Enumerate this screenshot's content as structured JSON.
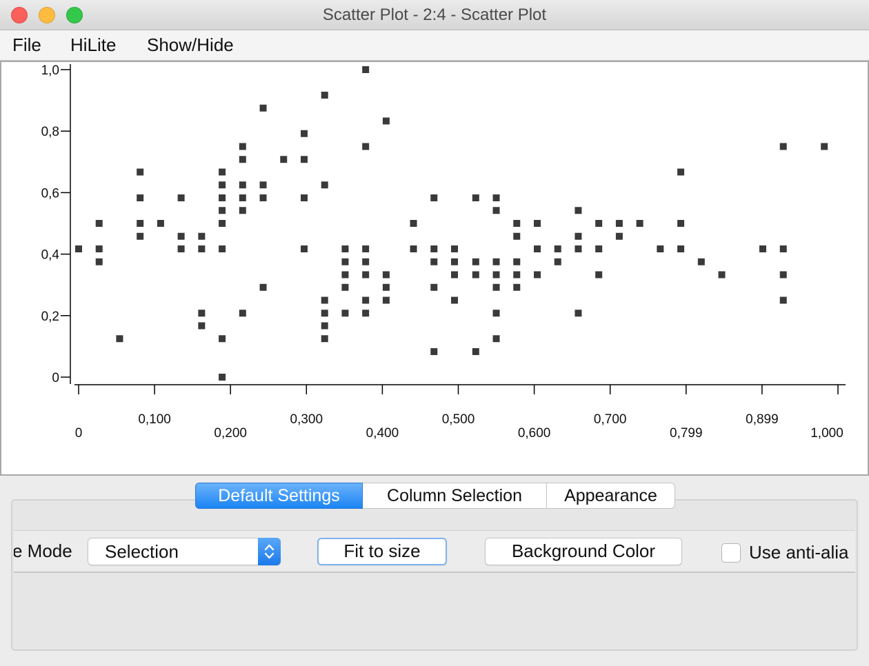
{
  "window": {
    "title": "Scatter Plot - 2:4 - Scatter Plot"
  },
  "menu": {
    "items": [
      "File",
      "HiLite",
      "Show/Hide"
    ]
  },
  "chart_data": {
    "type": "scatter",
    "title": "",
    "xlabel": "",
    "ylabel": "",
    "xlim": [
      0,
      1.0
    ],
    "ylim": [
      0,
      1.0
    ],
    "grid": false,
    "x_ticks": [
      {
        "value": 0,
        "label": "0"
      },
      {
        "value": 0.1,
        "label": "0,100"
      },
      {
        "value": 0.2,
        "label": "0,200"
      },
      {
        "value": 0.3,
        "label": "0,300"
      },
      {
        "value": 0.4,
        "label": "0,400"
      },
      {
        "value": 0.5,
        "label": "0,500"
      },
      {
        "value": 0.6,
        "label": "0,600"
      },
      {
        "value": 0.7,
        "label": "0,700"
      },
      {
        "value": 0.8,
        "label": "0,799"
      },
      {
        "value": 0.9,
        "label": "0,899"
      },
      {
        "value": 1.0,
        "label": "1,000"
      }
    ],
    "y_ticks": [
      {
        "value": 0,
        "label": "0"
      },
      {
        "value": 0.2,
        "label": "0,2"
      },
      {
        "value": 0.4,
        "label": "0,4"
      },
      {
        "value": 0.6,
        "label": "0,6"
      },
      {
        "value": 0.8,
        "label": "0,8"
      },
      {
        "value": 1.0,
        "label": "1,0"
      }
    ],
    "points": [
      [
        0.0,
        0.417
      ],
      [
        0.027,
        0.5
      ],
      [
        0.027,
        0.417
      ],
      [
        0.027,
        0.375
      ],
      [
        0.054,
        0.125
      ],
      [
        0.081,
        0.667
      ],
      [
        0.081,
        0.583
      ],
      [
        0.081,
        0.5
      ],
      [
        0.081,
        0.458
      ],
      [
        0.108,
        0.5
      ],
      [
        0.135,
        0.583
      ],
      [
        0.135,
        0.458
      ],
      [
        0.135,
        0.417
      ],
      [
        0.162,
        0.458
      ],
      [
        0.162,
        0.417
      ],
      [
        0.162,
        0.208
      ],
      [
        0.162,
        0.167
      ],
      [
        0.189,
        0.667
      ],
      [
        0.189,
        0.625
      ],
      [
        0.189,
        0.583
      ],
      [
        0.189,
        0.542
      ],
      [
        0.189,
        0.5
      ],
      [
        0.189,
        0.417
      ],
      [
        0.189,
        0.125
      ],
      [
        0.189,
        0.0
      ],
      [
        0.216,
        0.75
      ],
      [
        0.216,
        0.708
      ],
      [
        0.216,
        0.625
      ],
      [
        0.216,
        0.583
      ],
      [
        0.216,
        0.542
      ],
      [
        0.216,
        0.208
      ],
      [
        0.243,
        0.875
      ],
      [
        0.243,
        0.625
      ],
      [
        0.243,
        0.583
      ],
      [
        0.243,
        0.292
      ],
      [
        0.27,
        0.708
      ],
      [
        0.297,
        0.792
      ],
      [
        0.297,
        0.708
      ],
      [
        0.297,
        0.583
      ],
      [
        0.297,
        0.417
      ],
      [
        0.324,
        0.917
      ],
      [
        0.324,
        0.625
      ],
      [
        0.324,
        0.25
      ],
      [
        0.324,
        0.208
      ],
      [
        0.324,
        0.167
      ],
      [
        0.324,
        0.125
      ],
      [
        0.351,
        0.417
      ],
      [
        0.351,
        0.375
      ],
      [
        0.351,
        0.333
      ],
      [
        0.351,
        0.292
      ],
      [
        0.351,
        0.208
      ],
      [
        0.378,
        1.0
      ],
      [
        0.378,
        0.75
      ],
      [
        0.378,
        0.417
      ],
      [
        0.378,
        0.375
      ],
      [
        0.378,
        0.333
      ],
      [
        0.378,
        0.25
      ],
      [
        0.378,
        0.208
      ],
      [
        0.405,
        0.833
      ],
      [
        0.405,
        0.333
      ],
      [
        0.405,
        0.292
      ],
      [
        0.405,
        0.25
      ],
      [
        0.441,
        0.5
      ],
      [
        0.441,
        0.417
      ],
      [
        0.468,
        0.583
      ],
      [
        0.468,
        0.417
      ],
      [
        0.468,
        0.375
      ],
      [
        0.468,
        0.292
      ],
      [
        0.468,
        0.083
      ],
      [
        0.495,
        0.417
      ],
      [
        0.495,
        0.375
      ],
      [
        0.495,
        0.333
      ],
      [
        0.495,
        0.25
      ],
      [
        0.523,
        0.583
      ],
      [
        0.523,
        0.375
      ],
      [
        0.523,
        0.333
      ],
      [
        0.523,
        0.083
      ],
      [
        0.55,
        0.583
      ],
      [
        0.55,
        0.542
      ],
      [
        0.55,
        0.375
      ],
      [
        0.55,
        0.333
      ],
      [
        0.55,
        0.292
      ],
      [
        0.55,
        0.208
      ],
      [
        0.55,
        0.125
      ],
      [
        0.577,
        0.5
      ],
      [
        0.577,
        0.458
      ],
      [
        0.577,
        0.375
      ],
      [
        0.577,
        0.333
      ],
      [
        0.577,
        0.292
      ],
      [
        0.604,
        0.5
      ],
      [
        0.604,
        0.417
      ],
      [
        0.604,
        0.333
      ],
      [
        0.631,
        0.417
      ],
      [
        0.631,
        0.375
      ],
      [
        0.658,
        0.542
      ],
      [
        0.658,
        0.458
      ],
      [
        0.658,
        0.417
      ],
      [
        0.658,
        0.208
      ],
      [
        0.685,
        0.5
      ],
      [
        0.685,
        0.417
      ],
      [
        0.685,
        0.333
      ],
      [
        0.712,
        0.5
      ],
      [
        0.712,
        0.458
      ],
      [
        0.739,
        0.5
      ],
      [
        0.766,
        0.417
      ],
      [
        0.793,
        0.667
      ],
      [
        0.793,
        0.5
      ],
      [
        0.793,
        0.417
      ],
      [
        0.82,
        0.375
      ],
      [
        0.847,
        0.333
      ],
      [
        0.901,
        0.417
      ],
      [
        0.928,
        0.75
      ],
      [
        0.928,
        0.417
      ],
      [
        0.928,
        0.333
      ],
      [
        0.928,
        0.25
      ],
      [
        0.982,
        0.75
      ]
    ]
  },
  "tabs": [
    "Default Settings",
    "Column Selection",
    "Appearance"
  ],
  "controls": {
    "mode_label": "e Mode",
    "mode_value": "Selection",
    "fit_label": "Fit to size",
    "bg_label": "Background Color",
    "antialias_label": "Use anti-alia"
  }
}
